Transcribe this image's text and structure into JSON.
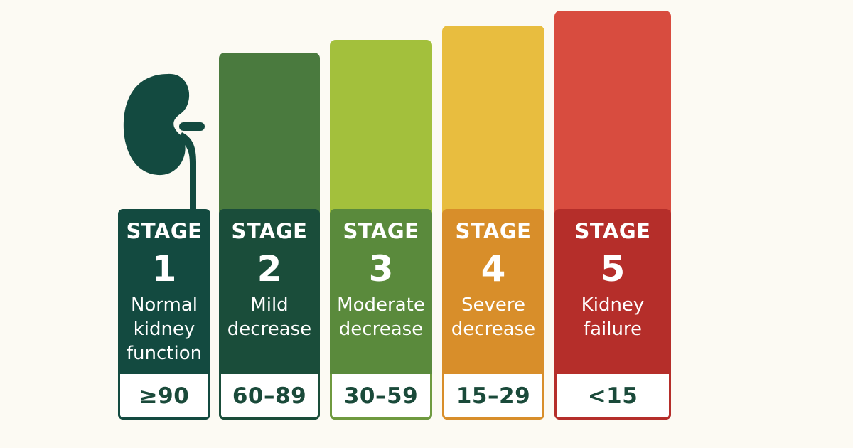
{
  "stages": [
    {
      "label": "STAGE",
      "number": "1",
      "description": "Normal kidney function",
      "desc_lines": [
        "Normal",
        "kidney",
        "function"
      ],
      "range": "≥90",
      "card_color": "#134a40",
      "bar_color": "",
      "border_color": "#134a40"
    },
    {
      "label": "STAGE",
      "number": "2",
      "description": "Mild decrease",
      "desc_lines": [
        "Mild",
        "decrease"
      ],
      "range": "60–89",
      "card_color": "#1a4d3a",
      "bar_color": "#4a7a3e",
      "border_color": "#1a4d3a"
    },
    {
      "label": "STAGE",
      "number": "3",
      "description": "Moderate decrease",
      "desc_lines": [
        "Moderate",
        "decrease"
      ],
      "range": "30–59",
      "card_color": "#5a8a3c",
      "bar_color": "#a3c03c",
      "border_color": "#6f9a3f"
    },
    {
      "label": "STAGE",
      "number": "4",
      "description": "Severe decrease",
      "desc_lines": [
        "Severe",
        "decrease"
      ],
      "range": "15–29",
      "card_color": "#d88e2a",
      "bar_color": "#e8bd3f",
      "border_color": "#d88e2a"
    },
    {
      "label": "STAGE",
      "number": "5",
      "description": "Kidney failure",
      "desc_lines": [
        "Kidney",
        "failure"
      ],
      "range": "<15",
      "card_color": "#b52e2a",
      "bar_color": "#d84c3f",
      "border_color": "#b52e2a"
    }
  ],
  "icons": {
    "kidney": "kidney-icon"
  },
  "colors": {
    "background": "#fcfaf3",
    "range_text": "#1a4a3a"
  }
}
